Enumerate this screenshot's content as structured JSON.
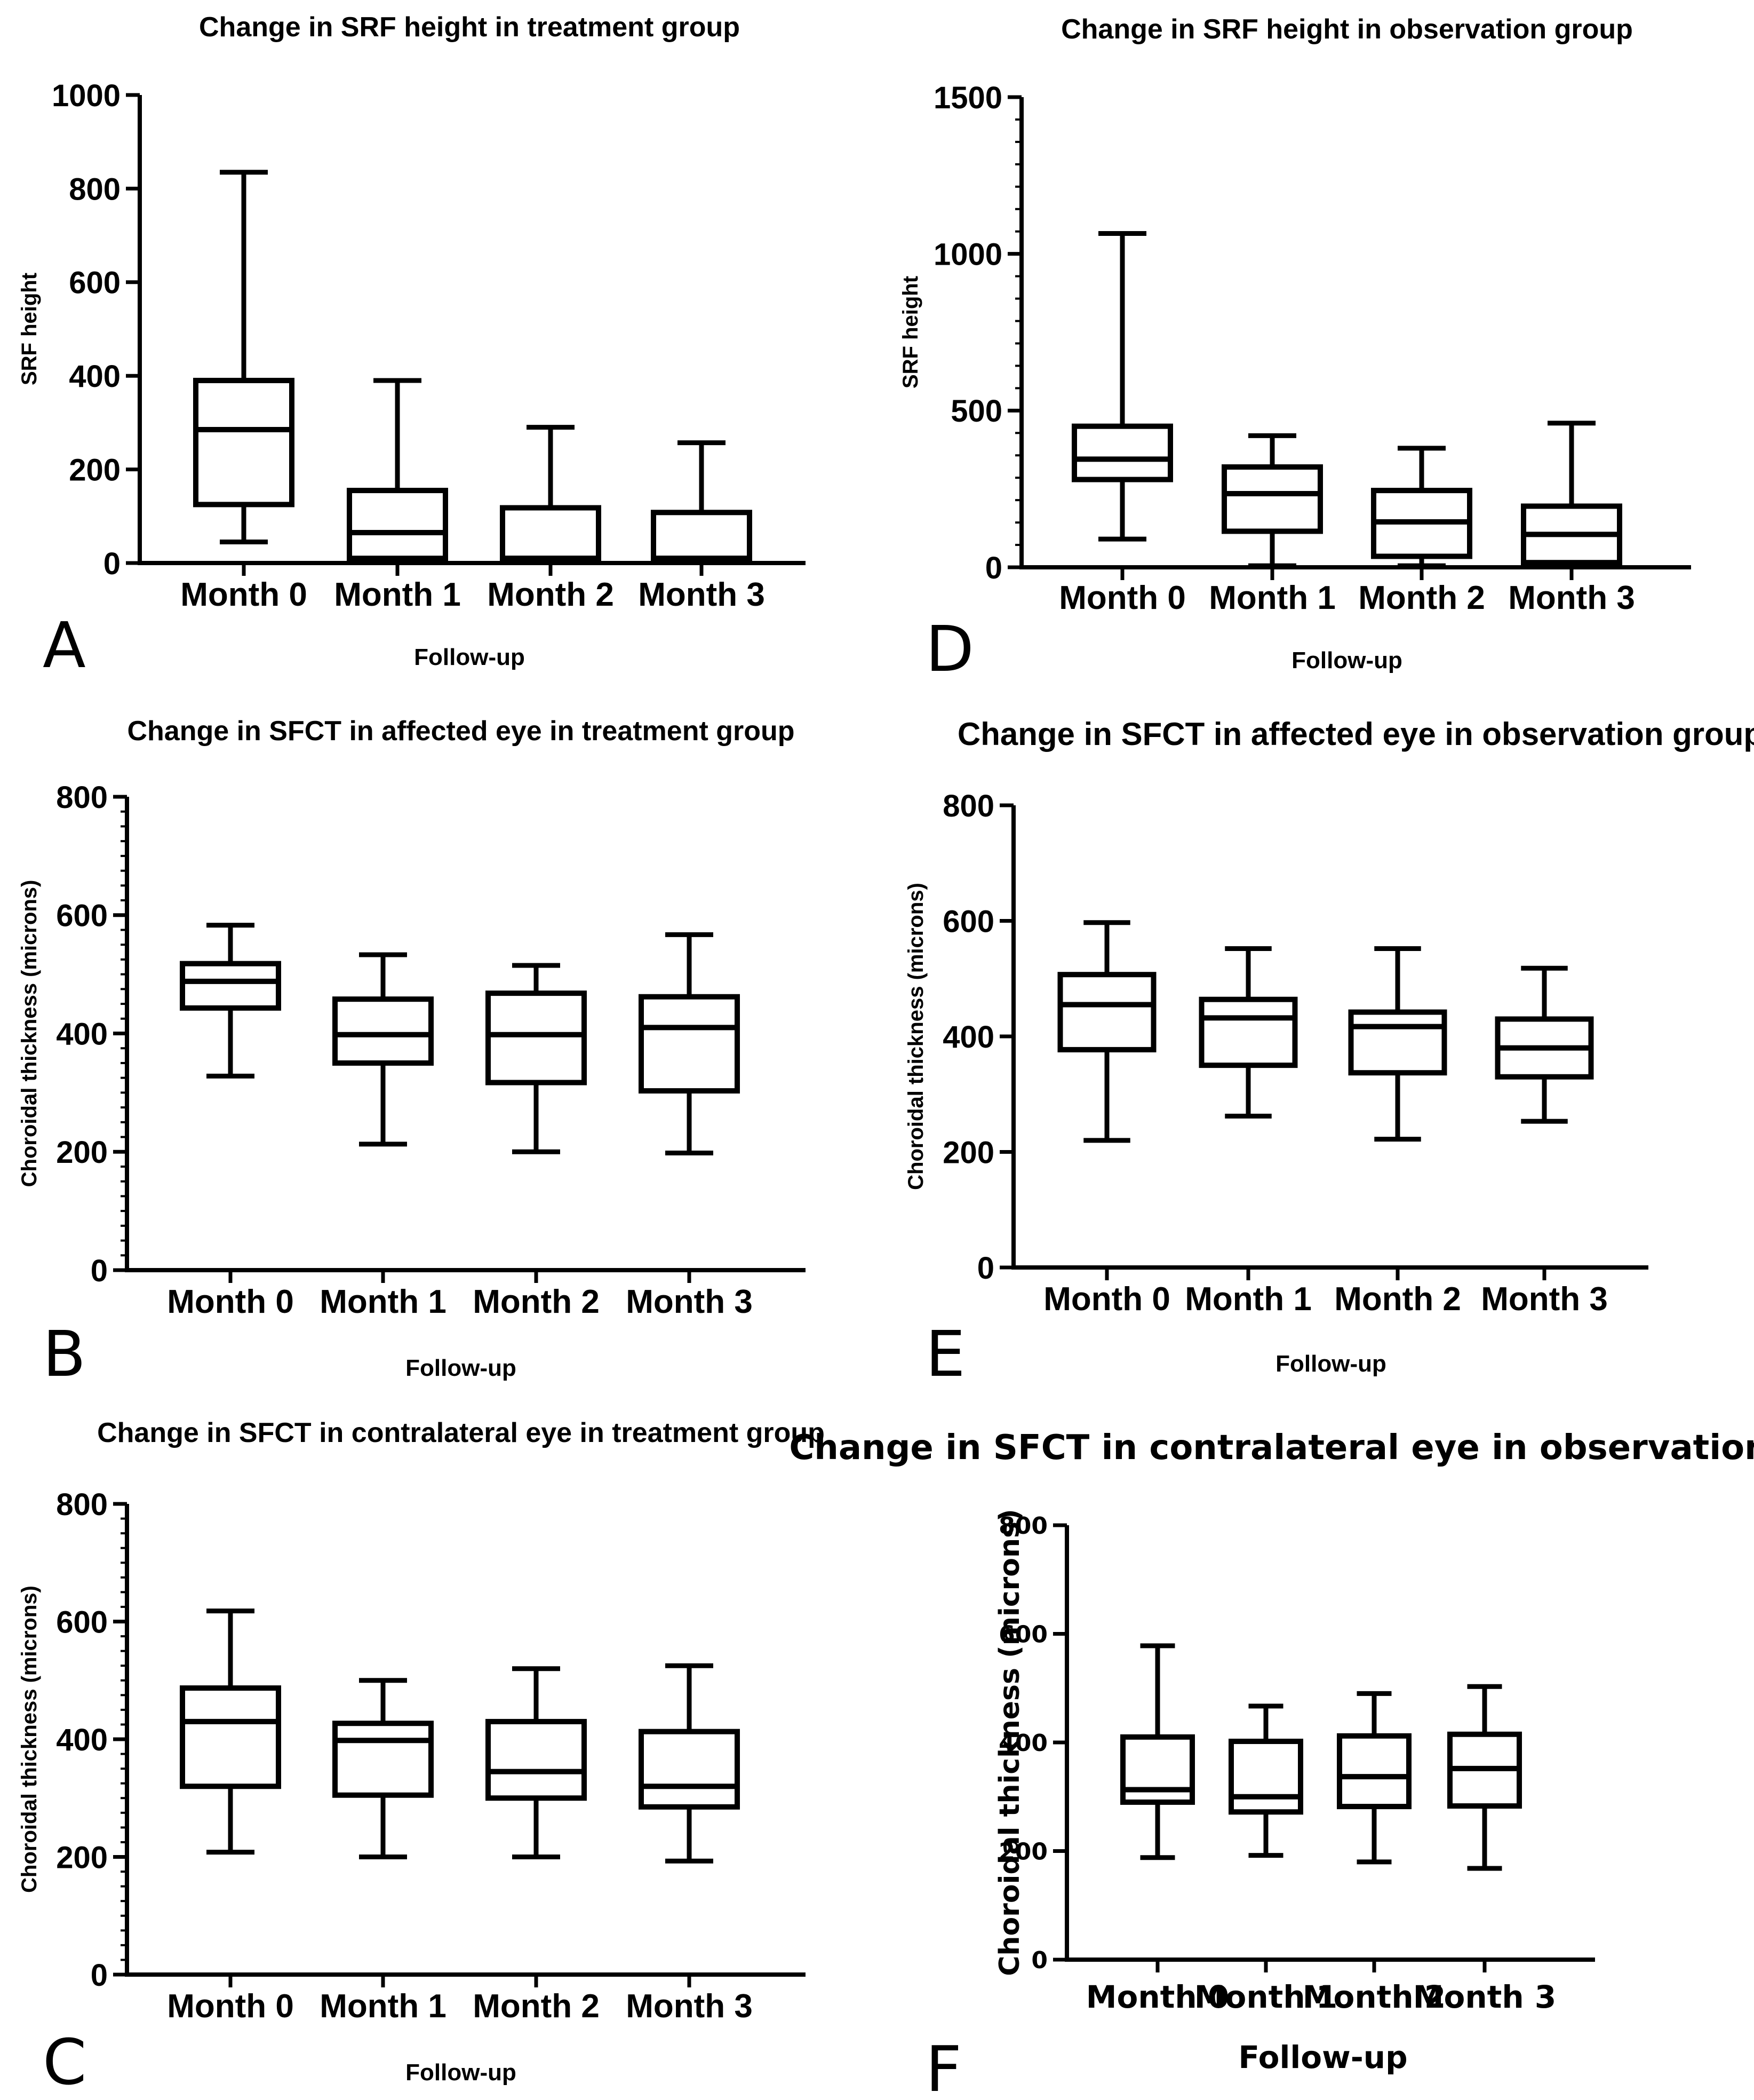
{
  "chart_data": [
    {
      "panel": "A",
      "type": "boxplot",
      "title": "Change in SRF height in treatment group",
      "xlabel": "Follow-up",
      "ylabel": "SRF height",
      "ylim": [
        0,
        1000
      ],
      "yticks": [
        "0",
        "200",
        "400",
        "600",
        "800",
        "1000"
      ],
      "categories": [
        "Month 0",
        "Month 1",
        "Month 2",
        "Month 3"
      ],
      "series": [
        {
          "min": 45,
          "q1": 125,
          "median": 285,
          "q3": 390,
          "max": 835
        },
        {
          "min": 5,
          "q1": 10,
          "median": 65,
          "q3": 155,
          "max": 390
        },
        {
          "min": 5,
          "q1": 10,
          "median": 10,
          "q3": 118,
          "max": 290
        },
        {
          "min": 5,
          "q1": 10,
          "median": 10,
          "q3": 108,
          "max": 257
        }
      ]
    },
    {
      "panel": "D",
      "type": "boxplot",
      "title": "Change in SRF height in observation group",
      "xlabel": "Follow-up",
      "ylabel": "SRF height",
      "ylim": [
        0,
        1500
      ],
      "yticks": [
        "0",
        "500",
        "1000",
        "1500"
      ],
      "categories": [
        "Month 0",
        "Month 1",
        "Month 2",
        "Month 3"
      ],
      "series": [
        {
          "min": 90,
          "q1": 280,
          "median": 345,
          "q3": 450,
          "max": 1065
        },
        {
          "min": 5,
          "q1": 115,
          "median": 235,
          "q3": 320,
          "max": 420
        },
        {
          "min": 5,
          "q1": 35,
          "median": 145,
          "q3": 245,
          "max": 380
        },
        {
          "min": 5,
          "q1": 15,
          "median": 105,
          "q3": 195,
          "max": 460
        }
      ]
    },
    {
      "panel": "B",
      "type": "boxplot",
      "title": "Change in SFCT in affected eye in treatment group",
      "xlabel": "Follow-up",
      "ylabel": "Choroidal thickness (microns)",
      "ylim": [
        0,
        800
      ],
      "yticks": [
        "0",
        "200",
        "400",
        "600",
        "800"
      ],
      "categories": [
        "Month 0",
        "Month 1",
        "Month 2",
        "Month 3"
      ],
      "series": [
        {
          "min": 328,
          "q1": 443,
          "median": 488,
          "q3": 518,
          "max": 583
        },
        {
          "min": 213,
          "q1": 350,
          "median": 398,
          "q3": 458,
          "max": 533
        },
        {
          "min": 200,
          "q1": 317,
          "median": 398,
          "q3": 468,
          "max": 515
        },
        {
          "min": 198,
          "q1": 303,
          "median": 410,
          "q3": 462,
          "max": 567
        }
      ]
    },
    {
      "panel": "E",
      "type": "boxplot",
      "title": "Change in SFCT in affected eye in observation group",
      "xlabel": "Follow-up",
      "ylabel": "Choroidal thickness (microns)",
      "ylim": [
        0,
        800
      ],
      "yticks": [
        "0",
        "200",
        "400",
        "600",
        "800"
      ],
      "categories": [
        "Month 0",
        "Month 1",
        "Month 2",
        "Month 3"
      ],
      "series": [
        {
          "min": 220,
          "q1": 377,
          "median": 455,
          "q3": 507,
          "max": 597
        },
        {
          "min": 262,
          "q1": 350,
          "median": 432,
          "q3": 464,
          "max": 552
        },
        {
          "min": 222,
          "q1": 337,
          "median": 417,
          "q3": 442,
          "max": 552
        },
        {
          "min": 253,
          "q1": 330,
          "median": 380,
          "q3": 430,
          "max": 518
        }
      ]
    },
    {
      "panel": "C",
      "type": "boxplot",
      "title": "Change in SFCT in contralateral eye in treatment group",
      "xlabel": "Follow-up",
      "ylabel": "Choroidal thickness (microns)",
      "ylim": [
        0,
        800
      ],
      "yticks": [
        "0",
        "200",
        "400",
        "600",
        "800"
      ],
      "categories": [
        "Month 0",
        "Month 1",
        "Month 2",
        "Month 3"
      ],
      "series": [
        {
          "min": 208,
          "q1": 320,
          "median": 430,
          "q3": 487,
          "max": 618
        },
        {
          "min": 200,
          "q1": 305,
          "median": 398,
          "q3": 427,
          "max": 500
        },
        {
          "min": 200,
          "q1": 300,
          "median": 345,
          "q3": 430,
          "max": 520
        },
        {
          "min": 193,
          "q1": 285,
          "median": 320,
          "q3": 413,
          "max": 525
        }
      ]
    },
    {
      "panel": "F",
      "type": "boxplot",
      "title": "Change in SFCT in contralateral eye in observation group",
      "xlabel": "Follow-up",
      "ylabel": "Choroidal thickness (microns)",
      "ylim": [
        0,
        800
      ],
      "yticks": [
        "0",
        "200",
        "400",
        "600",
        "800"
      ],
      "categories": [
        "Month 0",
        "Month 1",
        "Month 2",
        "Month 3"
      ],
      "series": [
        {
          "min": 188,
          "q1": 290,
          "median": 313,
          "q3": 410,
          "max": 578
        },
        {
          "min": 192,
          "q1": 272,
          "median": 300,
          "q3": 402,
          "max": 467
        },
        {
          "min": 180,
          "q1": 282,
          "median": 337,
          "q3": 412,
          "max": 490
        },
        {
          "min": 168,
          "q1": 283,
          "median": 352,
          "q3": 415,
          "max": 503
        }
      ]
    }
  ]
}
